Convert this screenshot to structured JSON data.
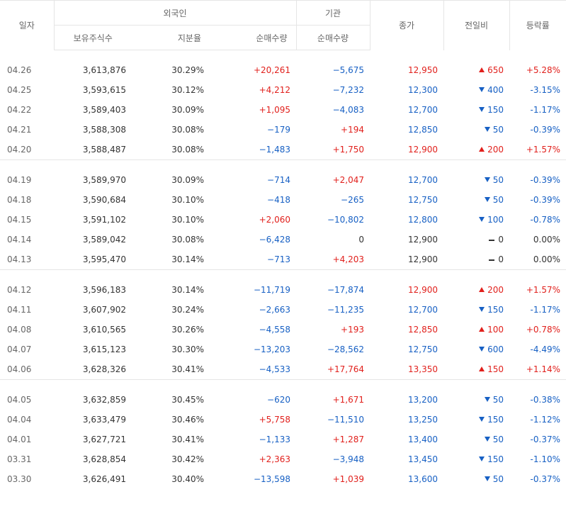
{
  "header": {
    "date": "일자",
    "foreign_group": "외국인",
    "inst_group": "기관",
    "holding": "보유주식수",
    "ratio": "지분율",
    "foreign_net": "순매수량",
    "inst_net": "순매수량",
    "close": "종가",
    "change": "전일비",
    "rate": "등락률"
  },
  "colors": {
    "up": "#e1201c",
    "down": "#1760c4",
    "flat": "#333333"
  },
  "groups": [
    [
      {
        "date": "04.26",
        "holding": "3,613,876",
        "ratio": "30.29%",
        "foreign_net": "+20,261",
        "inst_net": "−5,675",
        "close": "12,950",
        "change": "650",
        "dir": "up",
        "rate": "+5.28%"
      },
      {
        "date": "04.25",
        "holding": "3,593,615",
        "ratio": "30.12%",
        "foreign_net": "+4,212",
        "inst_net": "−7,232",
        "close": "12,300",
        "change": "400",
        "dir": "down",
        "rate": "-3.15%"
      },
      {
        "date": "04.22",
        "holding": "3,589,403",
        "ratio": "30.09%",
        "foreign_net": "+1,095",
        "inst_net": "−4,083",
        "close": "12,700",
        "change": "150",
        "dir": "down",
        "rate": "-1.17%"
      },
      {
        "date": "04.21",
        "holding": "3,588,308",
        "ratio": "30.08%",
        "foreign_net": "−179",
        "inst_net": "+194",
        "close": "12,850",
        "change": "50",
        "dir": "down",
        "rate": "-0.39%"
      },
      {
        "date": "04.20",
        "holding": "3,588,487",
        "ratio": "30.08%",
        "foreign_net": "−1,483",
        "inst_net": "+1,750",
        "close": "12,900",
        "change": "200",
        "dir": "up",
        "rate": "+1.57%"
      }
    ],
    [
      {
        "date": "04.19",
        "holding": "3,589,970",
        "ratio": "30.09%",
        "foreign_net": "−714",
        "inst_net": "+2,047",
        "close": "12,700",
        "change": "50",
        "dir": "down",
        "rate": "-0.39%"
      },
      {
        "date": "04.18",
        "holding": "3,590,684",
        "ratio": "30.10%",
        "foreign_net": "−418",
        "inst_net": "−265",
        "close": "12,750",
        "change": "50",
        "dir": "down",
        "rate": "-0.39%"
      },
      {
        "date": "04.15",
        "holding": "3,591,102",
        "ratio": "30.10%",
        "foreign_net": "+2,060",
        "inst_net": "−10,802",
        "close": "12,800",
        "change": "100",
        "dir": "down",
        "rate": "-0.78%"
      },
      {
        "date": "04.14",
        "holding": "3,589,042",
        "ratio": "30.08%",
        "foreign_net": "−6,428",
        "inst_net": "0",
        "close": "12,900",
        "change": "0",
        "dir": "flat",
        "rate": "0.00%"
      },
      {
        "date": "04.13",
        "holding": "3,595,470",
        "ratio": "30.14%",
        "foreign_net": "−713",
        "inst_net": "+4,203",
        "close": "12,900",
        "change": "0",
        "dir": "flat",
        "rate": "0.00%"
      }
    ],
    [
      {
        "date": "04.12",
        "holding": "3,596,183",
        "ratio": "30.14%",
        "foreign_net": "−11,719",
        "inst_net": "−17,874",
        "close": "12,900",
        "change": "200",
        "dir": "up",
        "rate": "+1.57%"
      },
      {
        "date": "04.11",
        "holding": "3,607,902",
        "ratio": "30.24%",
        "foreign_net": "−2,663",
        "inst_net": "−11,235",
        "close": "12,700",
        "change": "150",
        "dir": "down",
        "rate": "-1.17%"
      },
      {
        "date": "04.08",
        "holding": "3,610,565",
        "ratio": "30.26%",
        "foreign_net": "−4,558",
        "inst_net": "+193",
        "close": "12,850",
        "change": "100",
        "dir": "up",
        "rate": "+0.78%"
      },
      {
        "date": "04.07",
        "holding": "3,615,123",
        "ratio": "30.30%",
        "foreign_net": "−13,203",
        "inst_net": "−28,562",
        "close": "12,750",
        "change": "600",
        "dir": "down",
        "rate": "-4.49%"
      },
      {
        "date": "04.06",
        "holding": "3,628,326",
        "ratio": "30.41%",
        "foreign_net": "−4,533",
        "inst_net": "+17,764",
        "close": "13,350",
        "change": "150",
        "dir": "up",
        "rate": "+1.14%"
      }
    ],
    [
      {
        "date": "04.05",
        "holding": "3,632,859",
        "ratio": "30.45%",
        "foreign_net": "−620",
        "inst_net": "+1,671",
        "close": "13,200",
        "change": "50",
        "dir": "down",
        "rate": "-0.38%"
      },
      {
        "date": "04.04",
        "holding": "3,633,479",
        "ratio": "30.46%",
        "foreign_net": "+5,758",
        "inst_net": "−11,510",
        "close": "13,250",
        "change": "150",
        "dir": "down",
        "rate": "-1.12%"
      },
      {
        "date": "04.01",
        "holding": "3,627,721",
        "ratio": "30.41%",
        "foreign_net": "−1,133",
        "inst_net": "+1,287",
        "close": "13,400",
        "change": "50",
        "dir": "down",
        "rate": "-0.37%"
      },
      {
        "date": "03.31",
        "holding": "3,628,854",
        "ratio": "30.42%",
        "foreign_net": "+2,363",
        "inst_net": "−3,948",
        "close": "13,450",
        "change": "150",
        "dir": "down",
        "rate": "-1.10%"
      },
      {
        "date": "03.30",
        "holding": "3,626,491",
        "ratio": "30.40%",
        "foreign_net": "−13,598",
        "inst_net": "+1,039",
        "close": "13,600",
        "change": "50",
        "dir": "down",
        "rate": "-0.37%"
      }
    ]
  ]
}
